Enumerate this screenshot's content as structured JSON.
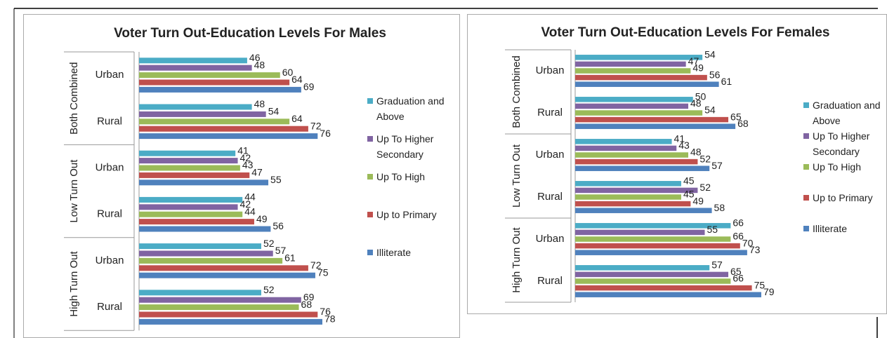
{
  "chart_data": [
    {
      "type": "bar",
      "orientation": "horizontal",
      "title": "Voter  Turn Out-Education Levels For Males",
      "groups": [
        "Both Combined",
        "Low Turn Out",
        "High Turn Out"
      ],
      "categories": [
        "Urban",
        "Rural",
        "Urban",
        "Rural",
        "Urban",
        "Rural"
      ],
      "series": [
        {
          "name": "Graduation and Above",
          "color": "#4bacc6",
          "values": [
            46,
            48,
            41,
            44,
            52,
            52
          ]
        },
        {
          "name": "Up To Higher Secondary",
          "color": "#8064a2",
          "values": [
            48,
            54,
            42,
            42,
            57,
            69
          ]
        },
        {
          "name": "Up To High",
          "color": "#9bbb59",
          "values": [
            60,
            64,
            43,
            44,
            61,
            68
          ]
        },
        {
          "name": "Up to Primary",
          "color": "#c0504d",
          "values": [
            64,
            72,
            47,
            49,
            72,
            76
          ]
        },
        {
          "name": "Illiterate",
          "color": "#4f81bd",
          "values": [
            69,
            76,
            55,
            56,
            75,
            78
          ]
        }
      ],
      "legend": "right"
    },
    {
      "type": "bar",
      "orientation": "horizontal",
      "title": "Voter Turn Out-Education Levels For Females",
      "groups": [
        "Both Combined",
        "Low Turn Out",
        "High Turn Out"
      ],
      "categories": [
        "Urban",
        "Rural",
        "Urban",
        "Rural",
        "Urban",
        "Rural"
      ],
      "series": [
        {
          "name": "Graduation and Above",
          "color": "#4bacc6",
          "values": [
            54,
            50,
            41,
            45,
            66,
            57
          ]
        },
        {
          "name": "Up To Higher Secondary",
          "color": "#8064a2",
          "values": [
            47,
            48,
            43,
            52,
            55,
            65
          ]
        },
        {
          "name": "Up To High",
          "color": "#9bbb59",
          "values": [
            49,
            54,
            48,
            45,
            66,
            66
          ]
        },
        {
          "name": "Up to Primary",
          "color": "#c0504d",
          "values": [
            56,
            65,
            52,
            49,
            70,
            75
          ]
        },
        {
          "name": "Illiterate",
          "color": "#4f81bd",
          "values": [
            61,
            68,
            57,
            58,
            73,
            79
          ]
        }
      ],
      "legend": "right"
    }
  ]
}
